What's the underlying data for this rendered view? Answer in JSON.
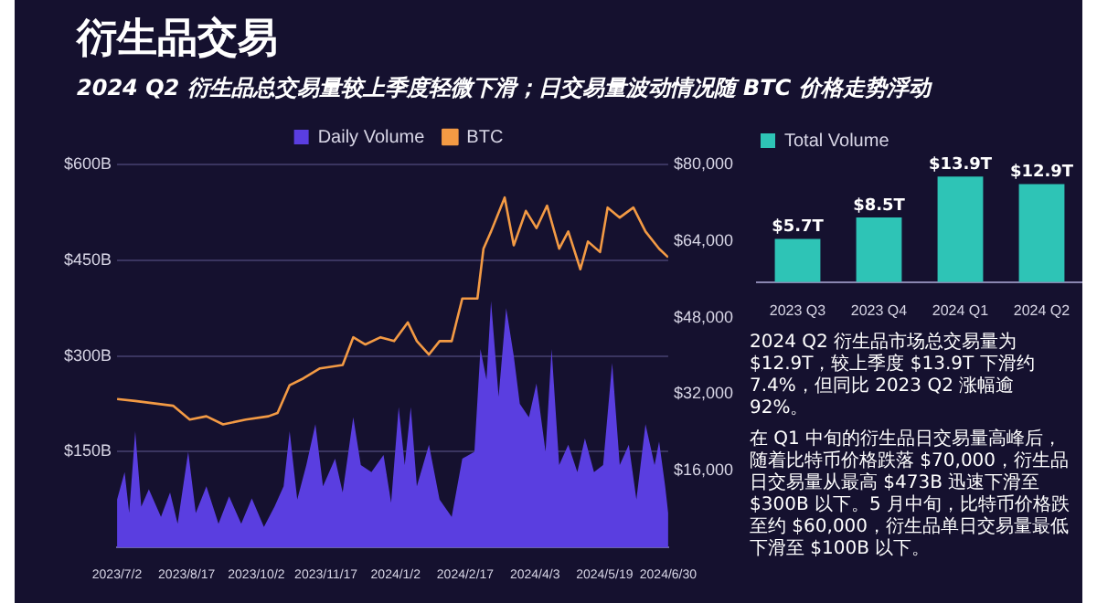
{
  "chart_data": [
    {
      "type": "area",
      "title": "衍生品交易",
      "subtitle": "2024 Q2 衍生品总交易量较上季度轻微下滑；日交易量波动情况随 BTC 价格走势浮动",
      "xlim": [
        "2023-07-02",
        "2024-06-30"
      ],
      "xticks": [
        {
          "value": "2023-07-02",
          "label": "2023/7/2"
        },
        {
          "value": "2023-08-17",
          "label": "2023/8/17"
        },
        {
          "value": "2023-10-02",
          "label": "2023/10/2"
        },
        {
          "value": "2023-11-17",
          "label": "2023/11/17"
        },
        {
          "value": "2024-01-02",
          "label": "2024/1/2"
        },
        {
          "value": "2024-02-17",
          "label": "2024/2/17"
        },
        {
          "value": "2024-04-03",
          "label": "2024/4/3"
        },
        {
          "value": "2024-05-19",
          "label": "2024/5/19"
        },
        {
          "value": "2024-06-30",
          "label": "2024/6/30"
        }
      ],
      "ylim": [
        0,
        600
      ],
      "yticks": [
        {
          "value": 150,
          "label": "$150B"
        },
        {
          "value": 300,
          "label": "$300B"
        },
        {
          "value": 450,
          "label": "$450B"
        },
        {
          "value": 600,
          "label": "$600B"
        }
      ],
      "y2lim": [
        0,
        80000
      ],
      "y2ticks": [
        {
          "value": 16000,
          "label": "$16,000"
        },
        {
          "value": 32000,
          "label": "$32,000"
        },
        {
          "value": 48000,
          "label": "$48,000"
        },
        {
          "value": 64000,
          "label": "$64,000"
        },
        {
          "value": 80000,
          "label": "$80,000"
        }
      ],
      "grid": "y",
      "legend": "top",
      "marker": "none",
      "series": [
        {
          "name": "Daily Volume",
          "type": "area",
          "color": "#5a3ee0",
          "x": [
            "2023-07-02",
            "2023-07-07",
            "2023-07-10",
            "2023-07-14",
            "2023-07-18",
            "2023-07-23",
            "2023-07-31",
            "2023-08-06",
            "2023-08-11",
            "2023-08-18",
            "2023-08-23",
            "2023-08-30",
            "2023-09-07",
            "2023-09-14",
            "2023-09-22",
            "2023-09-29",
            "2023-10-07",
            "2023-10-14",
            "2023-10-20",
            "2023-10-24",
            "2023-10-29",
            "2023-11-04",
            "2023-11-10",
            "2023-11-15",
            "2023-11-23",
            "2023-11-28",
            "2023-12-05",
            "2023-12-10",
            "2023-12-17",
            "2023-12-25",
            "2023-12-30",
            "2024-01-04",
            "2024-01-08",
            "2024-01-12",
            "2024-01-16",
            "2024-01-24",
            "2024-01-31",
            "2024-02-08",
            "2024-02-15",
            "2024-02-23",
            "2024-02-27",
            "2024-03-02",
            "2024-03-05",
            "2024-03-10",
            "2024-03-15",
            "2024-03-20",
            "2024-03-24",
            "2024-03-30",
            "2024-04-04",
            "2024-04-10",
            "2024-04-14",
            "2024-04-19",
            "2024-04-25",
            "2024-05-01",
            "2024-05-06",
            "2024-05-12",
            "2024-05-18",
            "2024-05-24",
            "2024-05-29",
            "2024-06-04",
            "2024-06-09",
            "2024-06-15",
            "2024-06-21",
            "2024-06-24",
            "2024-06-28",
            "2024-06-30"
          ],
          "values": [
            75,
            118,
            54,
            182,
            64,
            91,
            48,
            86,
            37,
            150,
            54,
            96,
            37,
            80,
            37,
            77,
            32,
            64,
            96,
            182,
            75,
            129,
            193,
            96,
            139,
            86,
            204,
            129,
            118,
            145,
            70,
            220,
            129,
            220,
            96,
            161,
            75,
            48,
            139,
            150,
            311,
            263,
            386,
            236,
            375,
            300,
            225,
            204,
            257,
            150,
            311,
            129,
            161,
            118,
            171,
            118,
            129,
            289,
            129,
            161,
            75,
            193,
            129,
            166,
            96,
            54
          ]
        },
        {
          "name": "BTC",
          "type": "line",
          "axis": "y2",
          "color": "#f39a44",
          "x": [
            "2023-07-02",
            "2023-07-14",
            "2023-08-08",
            "2023-08-19",
            "2023-08-30",
            "2023-09-10",
            "2023-09-25",
            "2023-10-10",
            "2023-10-16",
            "2023-10-24",
            "2023-11-02",
            "2023-11-13",
            "2023-11-28",
            "2023-12-05",
            "2023-12-13",
            "2023-12-23",
            "2024-01-01",
            "2024-01-10",
            "2024-01-16",
            "2024-01-24",
            "2024-01-31",
            "2024-02-08",
            "2024-02-15",
            "2024-02-25",
            "2024-02-29",
            "2024-03-05",
            "2024-03-14",
            "2024-03-20",
            "2024-03-28",
            "2024-04-04",
            "2024-04-11",
            "2024-04-19",
            "2024-04-25",
            "2024-05-03",
            "2024-05-08",
            "2024-05-16",
            "2024-05-21",
            "2024-05-29",
            "2024-06-07",
            "2024-06-15",
            "2024-06-24",
            "2024-06-30"
          ],
          "values": [
            31000,
            30600,
            29600,
            26700,
            27400,
            25700,
            26700,
            27400,
            28100,
            33900,
            35300,
            37400,
            38100,
            43900,
            42400,
            43900,
            43100,
            47000,
            43100,
            40300,
            43100,
            43100,
            52000,
            52000,
            62400,
            66000,
            73100,
            63100,
            70300,
            66700,
            71400,
            62400,
            66000,
            58100,
            63900,
            61700,
            71000,
            68900,
            71000,
            66000,
            62400,
            60600
          ]
        }
      ]
    },
    {
      "type": "bar",
      "legend": "top left",
      "categories": [
        "2023 Q3",
        "2023 Q4",
        "2024 Q1",
        "2024 Q2"
      ],
      "series": [
        {
          "name": "Total Volume",
          "color": "#2ec4b6",
          "values": [
            5.7,
            8.5,
            13.9,
            12.9
          ],
          "value_labels": [
            "$5.7T",
            "$8.5T",
            "$13.9T",
            "$12.9T"
          ]
        }
      ],
      "annotations": [
        "2024 Q2 衍生品市场总交易量为 $12.9T，较上季度 $13.9T 下滑约 7.4%，但同比 2023 Q2 涨幅逾 92%。",
        "在 Q1 中旬的衍生品日交易量高峰后，随着比特币价格跌落 $70,000，衍生品日交易量从最高 $473B 迅速下滑至 $300B 以下。5 月中旬，比特币价格跌至约 $60,000，衍生品单日交易量最低下滑至 $100B 以下。"
      ]
    }
  ]
}
